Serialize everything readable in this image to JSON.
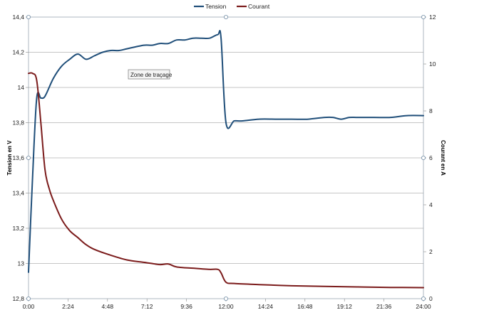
{
  "chart_data": {
    "type": "line",
    "xlabel": "",
    "ylabel_left": "Tension en V",
    "ylabel_right": "Courant en A",
    "x_ticks": [
      "0:00",
      "2:24",
      "4:48",
      "7:12",
      "9:36",
      "12:00",
      "14:24",
      "16:48",
      "19:12",
      "21:36",
      "24:00"
    ],
    "x_range_hours": [
      0,
      24
    ],
    "y_left_ticks": [
      "12,8",
      "13",
      "13,2",
      "13,4",
      "13,6",
      "13,8",
      "14",
      "14,2",
      "14,4"
    ],
    "y_left_range": [
      12.8,
      14.4
    ],
    "y_right_ticks": [
      "0",
      "2",
      "4",
      "6",
      "8",
      "10",
      "12"
    ],
    "y_right_range": [
      0,
      12
    ],
    "grid": true,
    "legend_position": "top",
    "tooltip": "Zone de traçage",
    "series": [
      {
        "name": "Tension",
        "axis": "left",
        "color": "#1f4e79",
        "x": [
          0,
          0.25,
          0.5,
          0.75,
          1.0,
          1.5,
          2.0,
          2.5,
          3.0,
          3.5,
          4.0,
          4.5,
          5.0,
          5.5,
          6.0,
          7.0,
          7.5,
          8.0,
          8.5,
          9.0,
          9.5,
          10.0,
          10.5,
          11.0,
          11.5,
          11.7,
          12.0,
          12.5,
          13.0,
          14.0,
          15.0,
          16.0,
          17.0,
          18.0,
          18.5,
          19.0,
          19.5,
          20.0,
          21.0,
          22.0,
          23.0,
          24.0
        ],
        "values": [
          12.95,
          13.5,
          13.94,
          13.94,
          13.95,
          14.05,
          14.12,
          14.16,
          14.19,
          14.16,
          14.18,
          14.2,
          14.21,
          14.21,
          14.22,
          14.24,
          14.24,
          14.25,
          14.25,
          14.27,
          14.27,
          14.28,
          14.28,
          14.28,
          14.3,
          14.28,
          13.8,
          13.81,
          13.81,
          13.82,
          13.82,
          13.82,
          13.82,
          13.83,
          13.83,
          13.82,
          13.83,
          13.83,
          13.83,
          13.83,
          13.84,
          13.84
        ]
      },
      {
        "name": "Courant",
        "axis": "right",
        "color": "#7b1b1b",
        "x": [
          0,
          0.25,
          0.5,
          0.75,
          1.0,
          1.25,
          1.5,
          2.0,
          2.5,
          3.0,
          3.5,
          4.0,
          5.0,
          6.0,
          7.0,
          7.5,
          8.0,
          8.5,
          9.0,
          10.0,
          11.0,
          11.5,
          11.7,
          12.0,
          12.5,
          14.0,
          16.0,
          18.0,
          20.0,
          22.0,
          24.0
        ],
        "values": [
          9.6,
          9.6,
          9.3,
          7.5,
          5.5,
          4.7,
          4.2,
          3.4,
          2.9,
          2.6,
          2.3,
          2.1,
          1.85,
          1.65,
          1.55,
          1.5,
          1.45,
          1.48,
          1.35,
          1.3,
          1.25,
          1.25,
          1.1,
          0.7,
          0.65,
          0.6,
          0.55,
          0.52,
          0.5,
          0.48,
          0.47
        ]
      }
    ]
  }
}
